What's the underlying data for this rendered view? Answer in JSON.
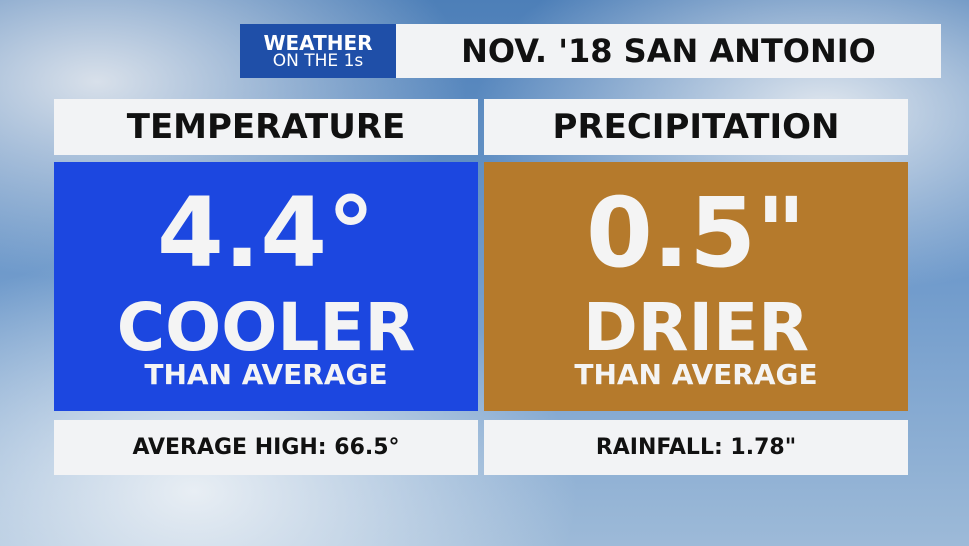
{
  "header": {
    "logo_line1": "WEATHER",
    "logo_line2": "ON THE 1s",
    "title": "NOV. '18 SAN ANTONIO"
  },
  "panels": [
    {
      "heading": "TEMPERATURE",
      "value": "4.4°",
      "label": "COOLER",
      "sublabel": "THAN AVERAGE",
      "footer": "AVERAGE HIGH: 66.5°"
    },
    {
      "heading": "PRECIPITATION",
      "value": "0.5\"",
      "label": "DRIER",
      "sublabel": "THAN AVERAGE",
      "footer": "RAINFALL: 1.78\""
    }
  ]
}
